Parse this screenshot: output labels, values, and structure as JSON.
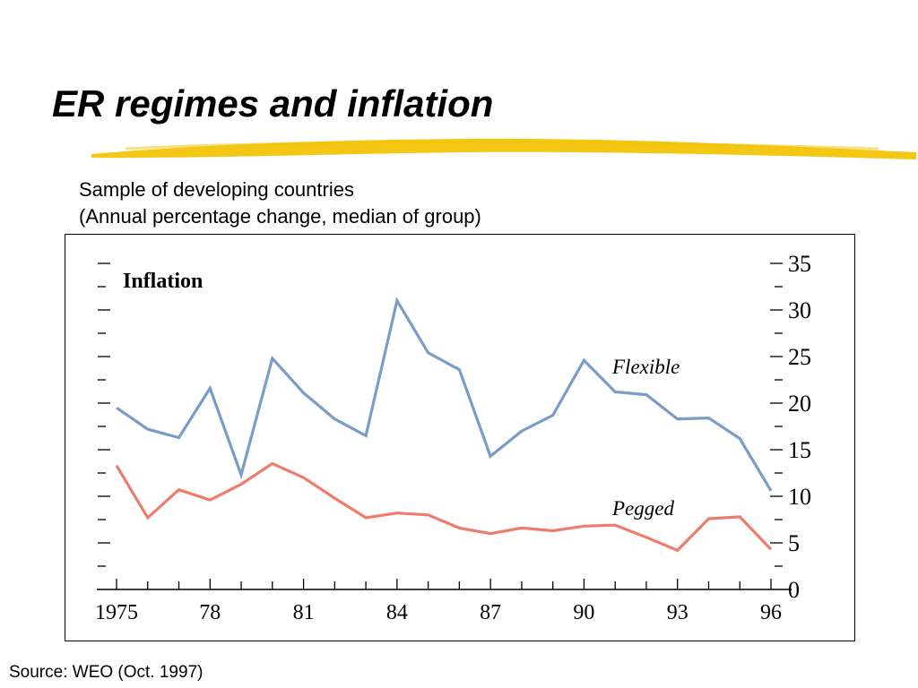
{
  "slide": {
    "title": "ER regimes and inflation",
    "subtitle_line1": "Sample of developing countries",
    "subtitle_line2": "(Annual percentage change, median of group)",
    "source": "Source: WEO (Oct. 1997)",
    "underline_color": "#f2c200"
  },
  "chart_data": {
    "type": "line",
    "title": "Inflation",
    "xlabel": "",
    "ylabel": "",
    "x": [
      1975,
      1976,
      1977,
      1978,
      1979,
      1980,
      1981,
      1982,
      1983,
      1984,
      1985,
      1986,
      1987,
      1988,
      1989,
      1990,
      1991,
      1992,
      1993,
      1994,
      1995,
      1996
    ],
    "xtick_values": [
      1975,
      1978,
      1981,
      1984,
      1987,
      1990,
      1993,
      1996
    ],
    "xtick_labels": [
      "1975",
      "78",
      "81",
      "84",
      "87",
      "90",
      "93",
      "96"
    ],
    "ylim": [
      0,
      35
    ],
    "ytick_values": [
      0,
      5,
      10,
      15,
      20,
      25,
      30,
      35
    ],
    "ytick_labels": [
      "0",
      "5",
      "10",
      "15",
      "20",
      "25",
      "30",
      "35"
    ],
    "grid": false,
    "series": [
      {
        "name": "Flexible",
        "color": "#7a9cc8",
        "values": [
          19.5,
          17.2,
          16.3,
          21.6,
          12.3,
          24.8,
          21.1,
          18.3,
          16.5,
          31.0,
          25.4,
          23.6,
          14.3,
          17.0,
          18.7,
          24.6,
          21.2,
          20.9,
          18.3,
          18.4,
          16.2,
          10.6
        ]
      },
      {
        "name": "Pegged",
        "color": "#ee7b6b",
        "values": [
          13.3,
          7.7,
          10.7,
          9.6,
          11.3,
          13.5,
          12.0,
          9.8,
          7.7,
          8.2,
          8.0,
          6.6,
          6.0,
          6.6,
          6.3,
          6.8,
          6.9,
          5.6,
          4.2,
          7.6,
          7.8,
          4.3
        ]
      }
    ]
  }
}
